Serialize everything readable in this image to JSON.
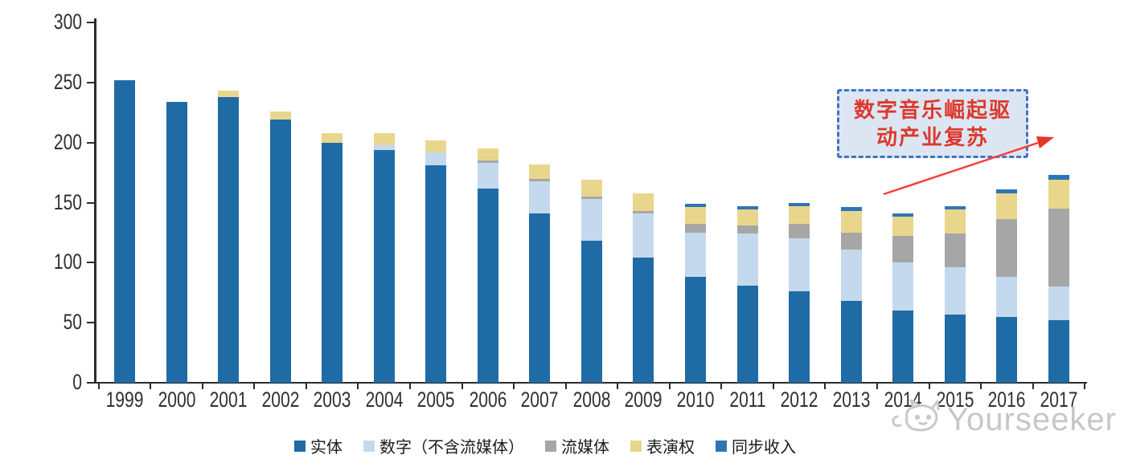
{
  "chart_data": {
    "type": "bar",
    "stacked": true,
    "title": "",
    "xlabel": "",
    "ylabel": "",
    "categories": [
      "1999",
      "2000",
      "2001",
      "2002",
      "2003",
      "2004",
      "2005",
      "2006",
      "2007",
      "2008",
      "2009",
      "2010",
      "2011",
      "2012",
      "2013",
      "2014",
      "2015",
      "2016",
      "2017"
    ],
    "series": [
      {
        "name": "实体",
        "color": "#1f6ba6",
        "values": [
          252,
          234,
          238,
          219,
          200,
          194,
          181,
          162,
          141,
          118,
          104,
          88,
          81,
          76,
          68,
          60,
          57,
          55,
          52
        ]
      },
      {
        "name": "数字（不含流媒体）",
        "color": "#c4d9ee",
        "values": [
          0,
          0,
          0,
          0,
          0,
          4,
          11,
          21,
          27,
          35,
          37,
          37,
          43,
          44,
          43,
          40,
          39,
          33,
          28
        ]
      },
      {
        "name": "流媒体",
        "color": "#a6a6a6",
        "values": [
          0,
          0,
          0,
          0,
          0,
          0,
          0,
          2,
          2,
          2,
          2,
          7,
          7,
          12,
          14,
          22,
          28,
          48,
          65
        ]
      },
      {
        "name": "表演权",
        "color": "#e9d68d",
        "values": [
          0,
          0,
          5,
          7,
          8,
          10,
          10,
          10,
          12,
          14,
          15,
          14,
          13,
          15,
          18,
          16,
          20,
          22,
          24
        ]
      },
      {
        "name": "同步收入",
        "color": "#2e75b6",
        "values": [
          0,
          0,
          0,
          0,
          0,
          0,
          0,
          0,
          0,
          0,
          0,
          3,
          3,
          3,
          3,
          3,
          3,
          3,
          4
        ]
      }
    ],
    "ylim": [
      0,
      300
    ],
    "yticks": [
      0,
      50,
      100,
      150,
      200,
      250,
      300
    ],
    "grid": false,
    "legend_position": "bottom",
    "axis_color": "#2b2b2b"
  },
  "annotation": {
    "line1": "数字音乐崛起驱",
    "line2": "动产业复苏",
    "text_color": "#dd382c",
    "box_fill": "#dce6f2",
    "box_border_color": "#4472c4",
    "arrow_color": "#f0423a"
  },
  "watermark": {
    "text": "Yourseeker",
    "icon": "cat-logo-icon",
    "color": "#c7c7c7"
  }
}
